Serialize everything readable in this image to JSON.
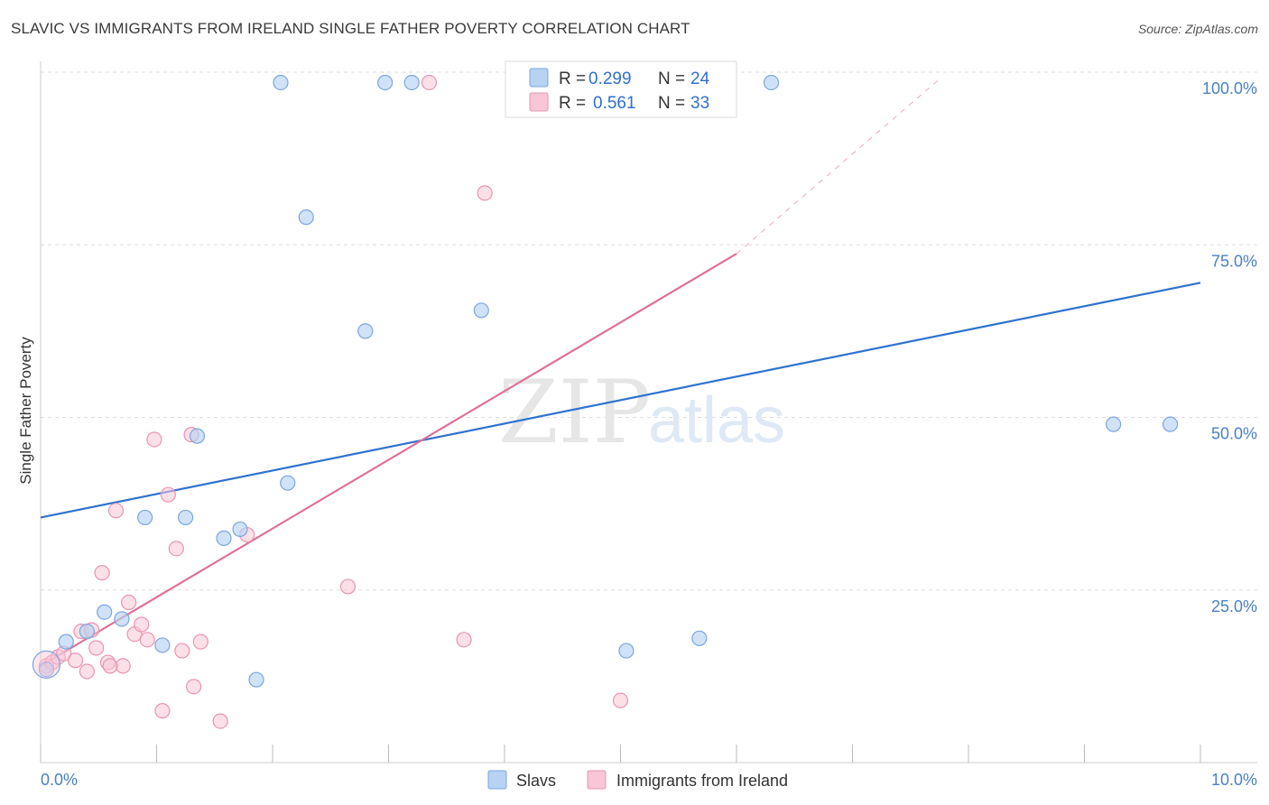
{
  "title": "SLAVIC VS IMMIGRANTS FROM IRELAND SINGLE FATHER POVERTY CORRELATION CHART",
  "source": "Source: ZipAtlas.com",
  "watermark": {
    "zip": "ZIP",
    "atlas": "atlas"
  },
  "colors": {
    "slavs_fill": "#b7d2f3",
    "slavs_stroke": "#7aa6e0",
    "slavs_line": "#2f72d0",
    "ireland_fill": "#f8c6d6",
    "ireland_stroke": "#e994b2",
    "ireland_line": "#e0709a",
    "grid": "#dddddd",
    "tick_text": "#4a80c8"
  },
  "legend": {
    "slavs_r_label": "R =",
    "slavs_r": "0.299",
    "slavs_n_label": "N =",
    "slavs_n": "24",
    "ireland_r_label": "R =",
    "ireland_r": "0.561",
    "ireland_n_label": "N =",
    "ireland_n": "33"
  },
  "chart_data": {
    "type": "scatter",
    "ylabel": "Single Father Poverty",
    "xlim": [
      0,
      10
    ],
    "ylim": [
      0,
      100
    ],
    "x_tick_labels": [
      "0.0%",
      "10.0%"
    ],
    "y_tick_labels": [
      "25.0%",
      "50.0%",
      "75.0%",
      "100.0%"
    ],
    "y_ticks": [
      25,
      50,
      75,
      100
    ],
    "grid": true,
    "legend_position": "top-center",
    "series": [
      {
        "name": "Slavs",
        "points": [
          [
            0.05,
            13.5
          ],
          [
            0.22,
            17.5
          ],
          [
            0.4,
            19.0
          ],
          [
            0.55,
            21.8
          ],
          [
            0.7,
            20.8
          ],
          [
            0.9,
            35.5
          ],
          [
            1.05,
            17.0
          ],
          [
            1.25,
            35.5
          ],
          [
            1.35,
            47.3
          ],
          [
            1.58,
            32.5
          ],
          [
            1.72,
            33.8
          ],
          [
            1.86,
            12.0
          ],
          [
            2.07,
            98.5
          ],
          [
            2.13,
            40.5
          ],
          [
            2.29,
            79.0
          ],
          [
            2.8,
            62.5
          ],
          [
            2.97,
            98.5
          ],
          [
            3.2,
            98.5
          ],
          [
            3.8,
            65.5
          ],
          [
            5.05,
            16.2
          ],
          [
            5.68,
            18.0
          ],
          [
            6.3,
            98.5
          ],
          [
            9.25,
            49.0
          ],
          [
            9.74,
            49.0
          ]
        ],
        "trend": [
          [
            0,
            35.5
          ],
          [
            10,
            69.5
          ]
        ]
      },
      {
        "name": "Immigrants from Ireland",
        "points": [
          [
            0.05,
            14.0
          ],
          [
            0.1,
            14.5
          ],
          [
            0.15,
            15.3
          ],
          [
            0.2,
            15.8
          ],
          [
            0.3,
            14.8
          ],
          [
            0.35,
            19.0
          ],
          [
            0.4,
            13.2
          ],
          [
            0.44,
            19.2
          ],
          [
            0.48,
            16.6
          ],
          [
            0.53,
            27.5
          ],
          [
            0.58,
            14.5
          ],
          [
            0.65,
            36.5
          ],
          [
            0.71,
            14.0
          ],
          [
            0.76,
            23.2
          ],
          [
            0.81,
            18.6
          ],
          [
            0.87,
            20.0
          ],
          [
            0.92,
            17.8
          ],
          [
            0.98,
            46.8
          ],
          [
            1.05,
            7.5
          ],
          [
            1.1,
            38.8
          ],
          [
            1.17,
            31.0
          ],
          [
            1.22,
            16.2
          ],
          [
            1.3,
            47.5
          ],
          [
            1.32,
            11.0
          ],
          [
            1.38,
            17.5
          ],
          [
            1.55,
            6.0
          ],
          [
            1.78,
            33.0
          ],
          [
            2.65,
            25.5
          ],
          [
            3.35,
            98.5
          ],
          [
            3.65,
            17.8
          ],
          [
            3.83,
            82.5
          ],
          [
            5.0,
            9.0
          ],
          [
            0.6,
            14.0
          ]
        ],
        "trend": [
          [
            0,
            14.0
          ],
          [
            6.0,
            73.7
          ]
        ],
        "trend_extension": [
          [
            6.0,
            73.7
          ],
          [
            7.75,
            99.0
          ]
        ]
      }
    ]
  },
  "bottom_legend": [
    {
      "label": "Slavs"
    },
    {
      "label": "Immigrants from Ireland"
    }
  ]
}
